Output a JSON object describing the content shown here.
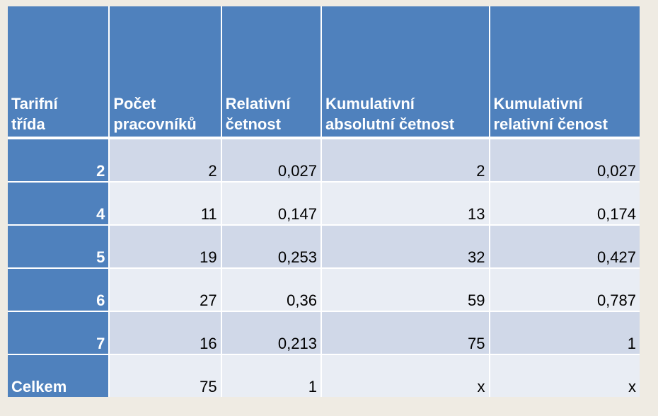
{
  "table": {
    "headers": [
      "Tarifní\ntřída",
      "Počet\npracovníků",
      "Relativní\nčetnost",
      "Kumulativní\nabsolutní četnost",
      "Kumulativní\nrelativní čenost"
    ],
    "rows": [
      [
        "2",
        "2",
        "0,027",
        "2",
        "0,027"
      ],
      [
        "4",
        "11",
        "0,147",
        "13",
        "0,174"
      ],
      [
        "5",
        "19",
        "0,253",
        "32",
        "0,427"
      ],
      [
        "6",
        "27",
        "0,36",
        "59",
        "0,787"
      ],
      [
        "7",
        "16",
        "0,213",
        "75",
        "1"
      ],
      [
        "Celkem",
        "75",
        "1",
        "x",
        "x"
      ]
    ]
  },
  "colors": {
    "header_blue": "#4f81bd",
    "row_dark": "#d0d8e8",
    "row_light": "#e9edf4",
    "background": "#efebe3"
  }
}
